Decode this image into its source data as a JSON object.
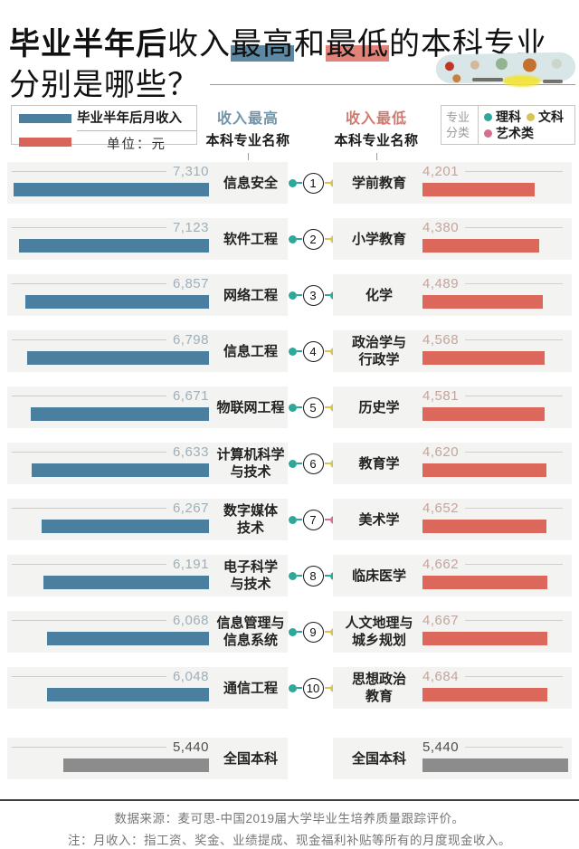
{
  "title": {
    "bold": "毕业半年后",
    "seg1": "收入",
    "hl_high": "最高",
    "seg2": "和",
    "hl_low": "最低",
    "seg3": "的本科专业",
    "line2": "分别是哪些？"
  },
  "legend": {
    "bar_label": "毕业半年后月收入",
    "unit_label": "单位：元"
  },
  "columns": {
    "high_title": "收入最高",
    "low_title": "收入最低",
    "subtitle": "本科专业名称"
  },
  "category_legend": {
    "label": "专业分类",
    "items": [
      {
        "name": "理科",
        "color": "#2fa79a"
      },
      {
        "name": "文科",
        "color": "#d6c455"
      },
      {
        "name": "艺术类",
        "color": "#d4708d"
      }
    ]
  },
  "chart_data": {
    "type": "bar",
    "title": "毕业半年后收入最高和最低的本科专业分别是哪些？",
    "unit": "元",
    "value_label": "毕业半年后月收入",
    "bar_colors": {
      "high": "#4b7f9f",
      "low": "#dc685c",
      "national": "#8c8c8c"
    },
    "category_colors": {
      "理科": "#2fa79a",
      "文科": "#d6c455",
      "艺术类": "#d4708d"
    },
    "xmax": 7310,
    "rows": [
      {
        "rank": "1",
        "high_major": "信息安全",
        "high_value": 7310,
        "high_label": "7,310",
        "high_cat": "理科",
        "low_major": "学前教育",
        "low_value": 4201,
        "low_label": "4,201",
        "low_cat": "文科"
      },
      {
        "rank": "2",
        "high_major": "软件工程",
        "high_value": 7123,
        "high_label": "7,123",
        "high_cat": "理科",
        "low_major": "小学教育",
        "low_value": 4380,
        "low_label": "4,380",
        "low_cat": "文科"
      },
      {
        "rank": "3",
        "high_major": "网络工程",
        "high_value": 6857,
        "high_label": "6,857",
        "high_cat": "理科",
        "low_major": "化学",
        "low_value": 4489,
        "low_label": "4,489",
        "low_cat": "理科"
      },
      {
        "rank": "4",
        "high_major": "信息工程",
        "high_value": 6798,
        "high_label": "6,798",
        "high_cat": "理科",
        "low_major": "政治学与\n行政学",
        "low_value": 4568,
        "low_label": "4,568",
        "low_cat": "文科"
      },
      {
        "rank": "5",
        "high_major": "物联网工程",
        "high_value": 6671,
        "high_label": "6,671",
        "high_cat": "理科",
        "low_major": "历史学",
        "low_value": 4581,
        "low_label": "4,581",
        "low_cat": "文科"
      },
      {
        "rank": "6",
        "high_major": "计算机科学\n与技术",
        "high_value": 6633,
        "high_label": "6,633",
        "high_cat": "理科",
        "low_major": "教育学",
        "low_value": 4620,
        "low_label": "4,620",
        "low_cat": "文科"
      },
      {
        "rank": "7",
        "high_major": "数字媒体\n技术",
        "high_value": 6267,
        "high_label": "6,267",
        "high_cat": "理科",
        "low_major": "美术学",
        "low_value": 4652,
        "low_label": "4,652",
        "low_cat": "艺术类"
      },
      {
        "rank": "8",
        "high_major": "电子科学\n与技术",
        "high_value": 6191,
        "high_label": "6,191",
        "high_cat": "理科",
        "low_major": "临床医学",
        "low_value": 4662,
        "low_label": "4,662",
        "low_cat": "理科"
      },
      {
        "rank": "9",
        "high_major": "信息管理与\n信息系统",
        "high_value": 6068,
        "high_label": "6,068",
        "high_cat": "理科",
        "low_major": "人文地理与\n城乡规划",
        "low_value": 4667,
        "low_label": "4,667",
        "low_cat": "文科"
      },
      {
        "rank": "10",
        "high_major": "通信工程",
        "high_value": 6048,
        "high_label": "6,048",
        "high_cat": "理科",
        "low_major": "思想政治\n教育",
        "low_value": 4684,
        "low_label": "4,684",
        "low_cat": "文科"
      }
    ],
    "baseline": {
      "major": "全国本科",
      "value": 5440,
      "label": "5,440"
    }
  },
  "watermark_blob": {
    "dot_colors": [
      "#c23526",
      "#d4b89a",
      "#93b493",
      "#c4702e",
      "#ccd6c8",
      "#c88040"
    ]
  },
  "footer": {
    "source": "数据来源：麦可思-中国2019届大学毕业生培养质量跟踪评价。",
    "note": "注：月收入：指工资、奖金、业绩提成、现金福利补贴等所有的月度现金收入。"
  }
}
